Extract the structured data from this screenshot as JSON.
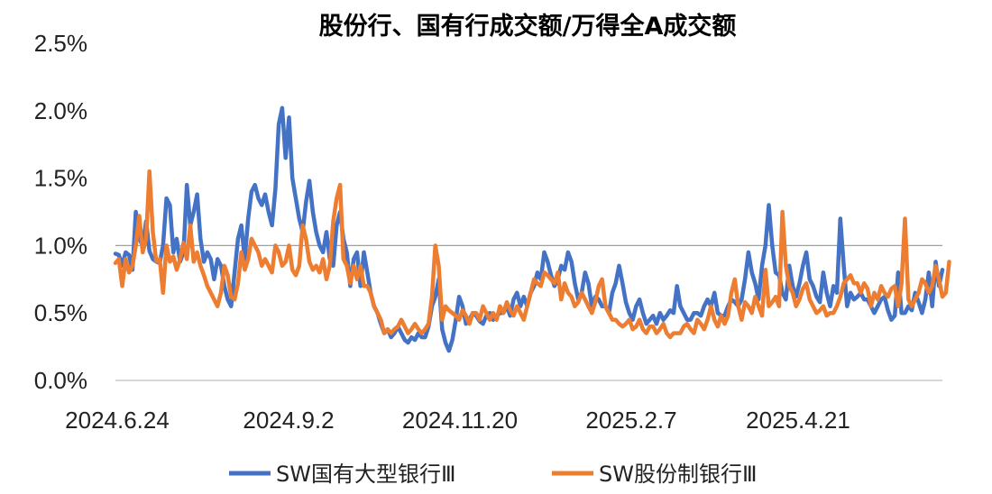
{
  "chart_data": {
    "type": "line",
    "title": "股份行、国有行成交额/万得全A成交额",
    "xlabel": "",
    "ylabel": "",
    "ylim": [
      0,
      2.5
    ],
    "yticks": [
      "0.0%",
      "0.5%",
      "1.0%",
      "1.5%",
      "2.0%",
      "2.5%"
    ],
    "xticks": [
      "2024.6.24",
      "2024.9.2",
      "2024.11.20",
      "2025.2.7",
      "2025.4.21"
    ],
    "grid": "y-axis gridline at 1.0% only",
    "legend_position": "bottom",
    "series": [
      {
        "name": "SW国有大型银行Ⅲ",
        "color": "#4472C4",
        "values": [
          0.94,
          0.93,
          0.85,
          0.95,
          0.93,
          0.82,
          1.25,
          1.05,
          1.0,
          1.18,
          0.96,
          0.9,
          0.88,
          0.87,
          1.0,
          1.35,
          1.3,
          0.95,
          1.05,
          0.88,
          0.95,
          1.45,
          1.15,
          1.25,
          1.38,
          1.05,
          0.88,
          0.95,
          0.9,
          0.75,
          0.9,
          0.85,
          0.7,
          0.6,
          0.55,
          0.8,
          1.05,
          1.15,
          0.9,
          1.2,
          1.4,
          1.45,
          1.35,
          1.3,
          1.38,
          1.25,
          1.15,
          1.42,
          1.9,
          2.02,
          1.65,
          1.95,
          1.5,
          1.35,
          1.2,
          1.1,
          1.32,
          1.48,
          1.25,
          1.1,
          1.0,
          0.95,
          1.1,
          0.9,
          0.85,
          1.15,
          1.25,
          1.05,
          0.95,
          0.7,
          0.9,
          0.95,
          0.7,
          0.95,
          0.8,
          0.65,
          0.55,
          0.5,
          0.42,
          0.35,
          0.38,
          0.32,
          0.35,
          0.4,
          0.35,
          0.3,
          0.28,
          0.32,
          0.3,
          0.35,
          0.32,
          0.32,
          0.4,
          0.55,
          0.62,
          0.75,
          0.38,
          0.28,
          0.22,
          0.3,
          0.45,
          0.62,
          0.55,
          0.42,
          0.45,
          0.5,
          0.48,
          0.44,
          0.42,
          0.48,
          0.5,
          0.45,
          0.48,
          0.5,
          0.5,
          0.55,
          0.48,
          0.6,
          0.65,
          0.55,
          0.62,
          0.55,
          0.65,
          0.7,
          0.8,
          0.75,
          0.95,
          0.88,
          0.78,
          0.7,
          0.75,
          0.85,
          0.82,
          0.95,
          0.88,
          0.72,
          0.6,
          0.65,
          0.8,
          0.72,
          0.55,
          0.62,
          0.6,
          0.55,
          0.55,
          0.5,
          0.65,
          0.72,
          0.85,
          0.72,
          0.58,
          0.5,
          0.45,
          0.55,
          0.6,
          0.5,
          0.42,
          0.45,
          0.48,
          0.42,
          0.5,
          0.45,
          0.48,
          0.52,
          0.5,
          0.7,
          0.55,
          0.5,
          0.45,
          0.45,
          0.5,
          0.5,
          0.48,
          0.55,
          0.6,
          0.55,
          0.65,
          0.5,
          0.48,
          0.48,
          0.55,
          0.6,
          0.58,
          0.55,
          0.6,
          0.75,
          0.95,
          0.8,
          0.72,
          0.6,
          0.85,
          1.0,
          1.3,
          1.0,
          0.8,
          0.78,
          0.65,
          0.6,
          0.85,
          0.7,
          0.62,
          0.72,
          0.85,
          0.95,
          0.75,
          0.7,
          0.62,
          0.58,
          0.8,
          0.65,
          0.55,
          0.7,
          0.65,
          1.2,
          0.85,
          0.55,
          0.65,
          0.6,
          0.62,
          0.65,
          0.6,
          0.6,
          0.55,
          0.5,
          0.55,
          0.6,
          0.62,
          0.52,
          0.45,
          0.48,
          0.8,
          0.5,
          0.5,
          0.55,
          0.52,
          0.65,
          0.58,
          0.5,
          0.6,
          0.8,
          0.55,
          0.88,
          0.7,
          0.82
        ]
      },
      {
        "name": "SW股份制银行Ⅲ",
        "color": "#ED7D31",
        "values": [
          0.87,
          0.9,
          0.7,
          0.9,
          0.8,
          0.85,
          1.0,
          1.22,
          0.95,
          1.05,
          1.55,
          1.1,
          0.88,
          0.9,
          0.65,
          1.0,
          0.88,
          0.92,
          0.82,
          0.9,
          1.02,
          0.9,
          1.15,
          0.88,
          0.95,
          0.85,
          0.78,
          0.7,
          0.65,
          0.6,
          0.55,
          0.65,
          0.85,
          0.78,
          0.62,
          0.6,
          0.72,
          0.95,
          0.82,
          0.9,
          1.05,
          1.0,
          0.95,
          0.85,
          0.9,
          0.85,
          0.8,
          1.0,
          0.95,
          0.85,
          0.88,
          1.0,
          0.82,
          0.78,
          0.85,
          1.15,
          1.05,
          0.88,
          0.82,
          0.85,
          0.8,
          0.9,
          0.75,
          0.85,
          1.18,
          1.35,
          1.45,
          0.9,
          0.85,
          0.72,
          0.85,
          0.75,
          0.85,
          0.7,
          0.7,
          0.65,
          0.55,
          0.5,
          0.45,
          0.35,
          0.38,
          0.35,
          0.38,
          0.4,
          0.45,
          0.4,
          0.35,
          0.38,
          0.42,
          0.38,
          0.35,
          0.38,
          0.42,
          0.62,
          1.0,
          0.85,
          0.45,
          0.55,
          0.52,
          0.5,
          0.48,
          0.45,
          0.52,
          0.48,
          0.42,
          0.5,
          0.5,
          0.45,
          0.55,
          0.5,
          0.45,
          0.5,
          0.45,
          0.55,
          0.5,
          0.58,
          0.52,
          0.48,
          0.55,
          0.5,
          0.45,
          0.55,
          0.65,
          0.75,
          0.72,
          0.7,
          0.8,
          0.78,
          0.75,
          0.72,
          0.8,
          0.6,
          0.72,
          0.65,
          0.62,
          0.55,
          0.58,
          0.65,
          0.6,
          0.55,
          0.5,
          0.58,
          0.7,
          0.75,
          0.55,
          0.5,
          0.45,
          0.45,
          0.42,
          0.4,
          0.42,
          0.45,
          0.38,
          0.4,
          0.45,
          0.38,
          0.35,
          0.4,
          0.4,
          0.35,
          0.38,
          0.42,
          0.35,
          0.32,
          0.35,
          0.35,
          0.35,
          0.4,
          0.42,
          0.38,
          0.35,
          0.45,
          0.42,
          0.38,
          0.45,
          0.55,
          0.45,
          0.4,
          0.48,
          0.42,
          0.48,
          0.65,
          0.75,
          0.55,
          0.45,
          0.58,
          0.55,
          0.5,
          0.62,
          0.55,
          0.48,
          0.82,
          0.55,
          0.58,
          0.62,
          0.55,
          1.25,
          0.85,
          0.7,
          0.65,
          0.55,
          0.6,
          0.68,
          0.72,
          0.6,
          0.55,
          0.5,
          0.52,
          0.55,
          0.48,
          0.5,
          0.5,
          0.55,
          0.62,
          0.72,
          0.75,
          0.78,
          0.72,
          0.72,
          0.65,
          0.72,
          0.68,
          0.55,
          0.65,
          0.6,
          0.7,
          0.65,
          0.62,
          0.68,
          0.7,
          0.55,
          0.72,
          1.2,
          0.6,
          0.55,
          0.6,
          0.65,
          0.75,
          0.72,
          0.65,
          0.7,
          0.85,
          0.75,
          0.62,
          0.65,
          0.88
        ]
      }
    ]
  }
}
